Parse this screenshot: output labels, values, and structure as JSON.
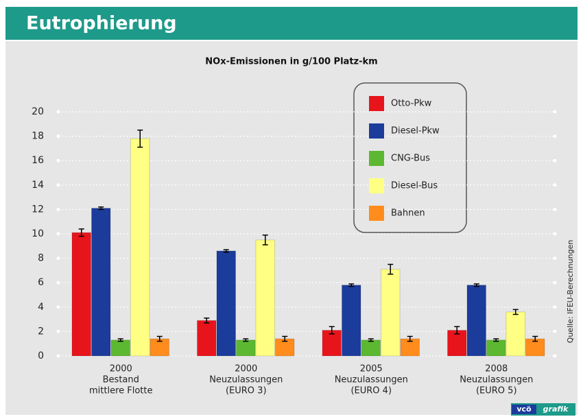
{
  "header": {
    "title": "Eutrophierung"
  },
  "chart_data": {
    "type": "bar",
    "title": "NOx-Emissionen in g/100 Platz-km",
    "categories": [
      [
        "2000",
        "Bestand",
        "mittlere Flotte"
      ],
      [
        "2000",
        "Neuzulassungen",
        "(EURO 3)"
      ],
      [
        "2005",
        "Neuzulassungen",
        "(EURO 4)"
      ],
      [
        "2008",
        "Neuzulassungen",
        "(EURO 5)"
      ]
    ],
    "series": [
      {
        "name": "Otto-Pkw",
        "color": "#e8141c",
        "values": [
          10.1,
          2.9,
          2.1,
          2.1
        ],
        "errors": [
          0.3,
          0.2,
          0.3,
          0.3
        ]
      },
      {
        "name": "Diesel-Pkw",
        "color": "#1c3c9c",
        "values": [
          12.1,
          8.6,
          5.8,
          5.8
        ],
        "errors": [
          0.1,
          0.1,
          0.1,
          0.1
        ]
      },
      {
        "name": "CNG-Bus",
        "color": "#5cb830",
        "values": [
          1.3,
          1.3,
          1.3,
          1.3
        ],
        "errors": [
          0.1,
          0.1,
          0.1,
          0.1
        ]
      },
      {
        "name": "Diesel-Bus",
        "color": "#ffff84",
        "values": [
          17.8,
          9.5,
          7.1,
          3.6
        ],
        "errors": [
          0.7,
          0.4,
          0.4,
          0.2
        ]
      },
      {
        "name": "Bahnen",
        "color": "#ff8c1c",
        "values": [
          1.4,
          1.4,
          1.4,
          1.4
        ],
        "errors": [
          0.2,
          0.2,
          0.2,
          0.2
        ]
      }
    ],
    "ylim": [
      0,
      20
    ],
    "yticks": [
      0,
      2,
      4,
      6,
      8,
      10,
      12,
      14,
      16,
      18,
      20
    ],
    "grid": true,
    "source": "Quelle: IFEU-Berechnungen",
    "logo": [
      "vcö",
      "grafik"
    ]
  }
}
